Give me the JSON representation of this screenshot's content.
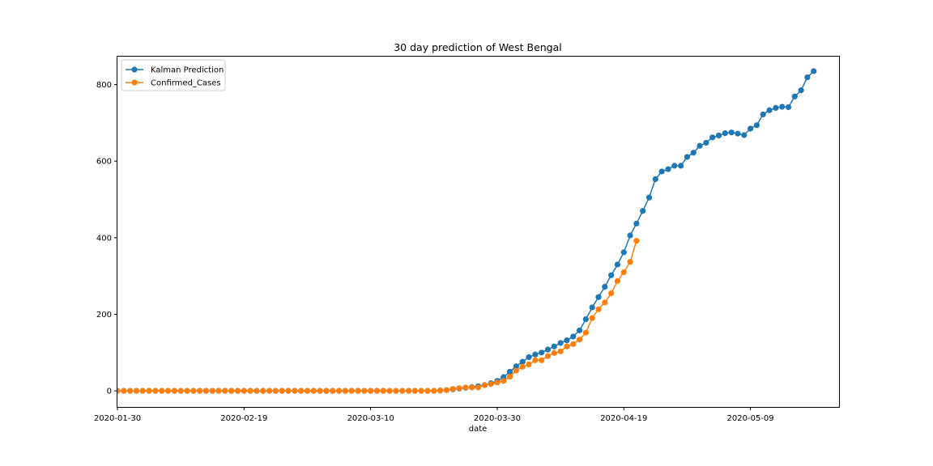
{
  "chart_data": {
    "type": "line",
    "title": "30 day prediction of West Bengal",
    "xlabel": "date",
    "ylabel": "",
    "x_tick_labels": [
      "2020-01-30",
      "2020-02-19",
      "2020-03-10",
      "2020-03-30",
      "2020-04-19",
      "2020-05-09"
    ],
    "y_tick_labels": [
      "0",
      "200",
      "400",
      "600",
      "800"
    ],
    "y_ticks": [
      0,
      200,
      400,
      600,
      800
    ],
    "xlim": [
      "2020-01-30",
      "2020-05-23"
    ],
    "ylim": [
      -42,
      873
    ],
    "legend_position": "top-left",
    "grid": false,
    "series": [
      {
        "name": "Kalman Prediction",
        "color": "#1f77b4",
        "marker": "circle",
        "start_date": "2020-01-30",
        "values": [
          0,
          0,
          0,
          0,
          0,
          0,
          0,
          0,
          0,
          0,
          0,
          0,
          0,
          0,
          0,
          0,
          0,
          0,
          0,
          0,
          0,
          0,
          0,
          0,
          0,
          0,
          0,
          0,
          0,
          0,
          0,
          0,
          0,
          0,
          0,
          0,
          0,
          0,
          0,
          0,
          0,
          0,
          0,
          0,
          0,
          0,
          0,
          0,
          0,
          0,
          0,
          1,
          2,
          4,
          6,
          8,
          10,
          12,
          15,
          20,
          26,
          36,
          50,
          64,
          76,
          88,
          95,
          100,
          108,
          116,
          125,
          132,
          142,
          158,
          187,
          218,
          245,
          272,
          302,
          330,
          362,
          406,
          437,
          470,
          505,
          553,
          573,
          579,
          588,
          588,
          611,
          622,
          640,
          648,
          662,
          667,
          673,
          675,
          672,
          668,
          685,
          694,
          722,
          733,
          739,
          742,
          741,
          769,
          785,
          819,
          835
        ]
      },
      {
        "name": "Confirmed_Cases",
        "color": "#ff7f0e",
        "marker": "circle",
        "start_date": "2020-01-30",
        "values": [
          0,
          0,
          0,
          0,
          0,
          0,
          0,
          0,
          0,
          0,
          0,
          0,
          0,
          0,
          0,
          0,
          0,
          0,
          0,
          0,
          0,
          0,
          0,
          0,
          0,
          0,
          0,
          0,
          0,
          0,
          0,
          0,
          0,
          0,
          0,
          0,
          0,
          0,
          0,
          0,
          0,
          0,
          0,
          0,
          0,
          0,
          0,
          0,
          0,
          0,
          0,
          1,
          2,
          5,
          7,
          9,
          9,
          9,
          15,
          18,
          22,
          26,
          37,
          53,
          63,
          69,
          80,
          80,
          91,
          99,
          103,
          116,
          122,
          134,
          152,
          190,
          213,
          231,
          255,
          287,
          310,
          337,
          392
        ]
      }
    ]
  }
}
